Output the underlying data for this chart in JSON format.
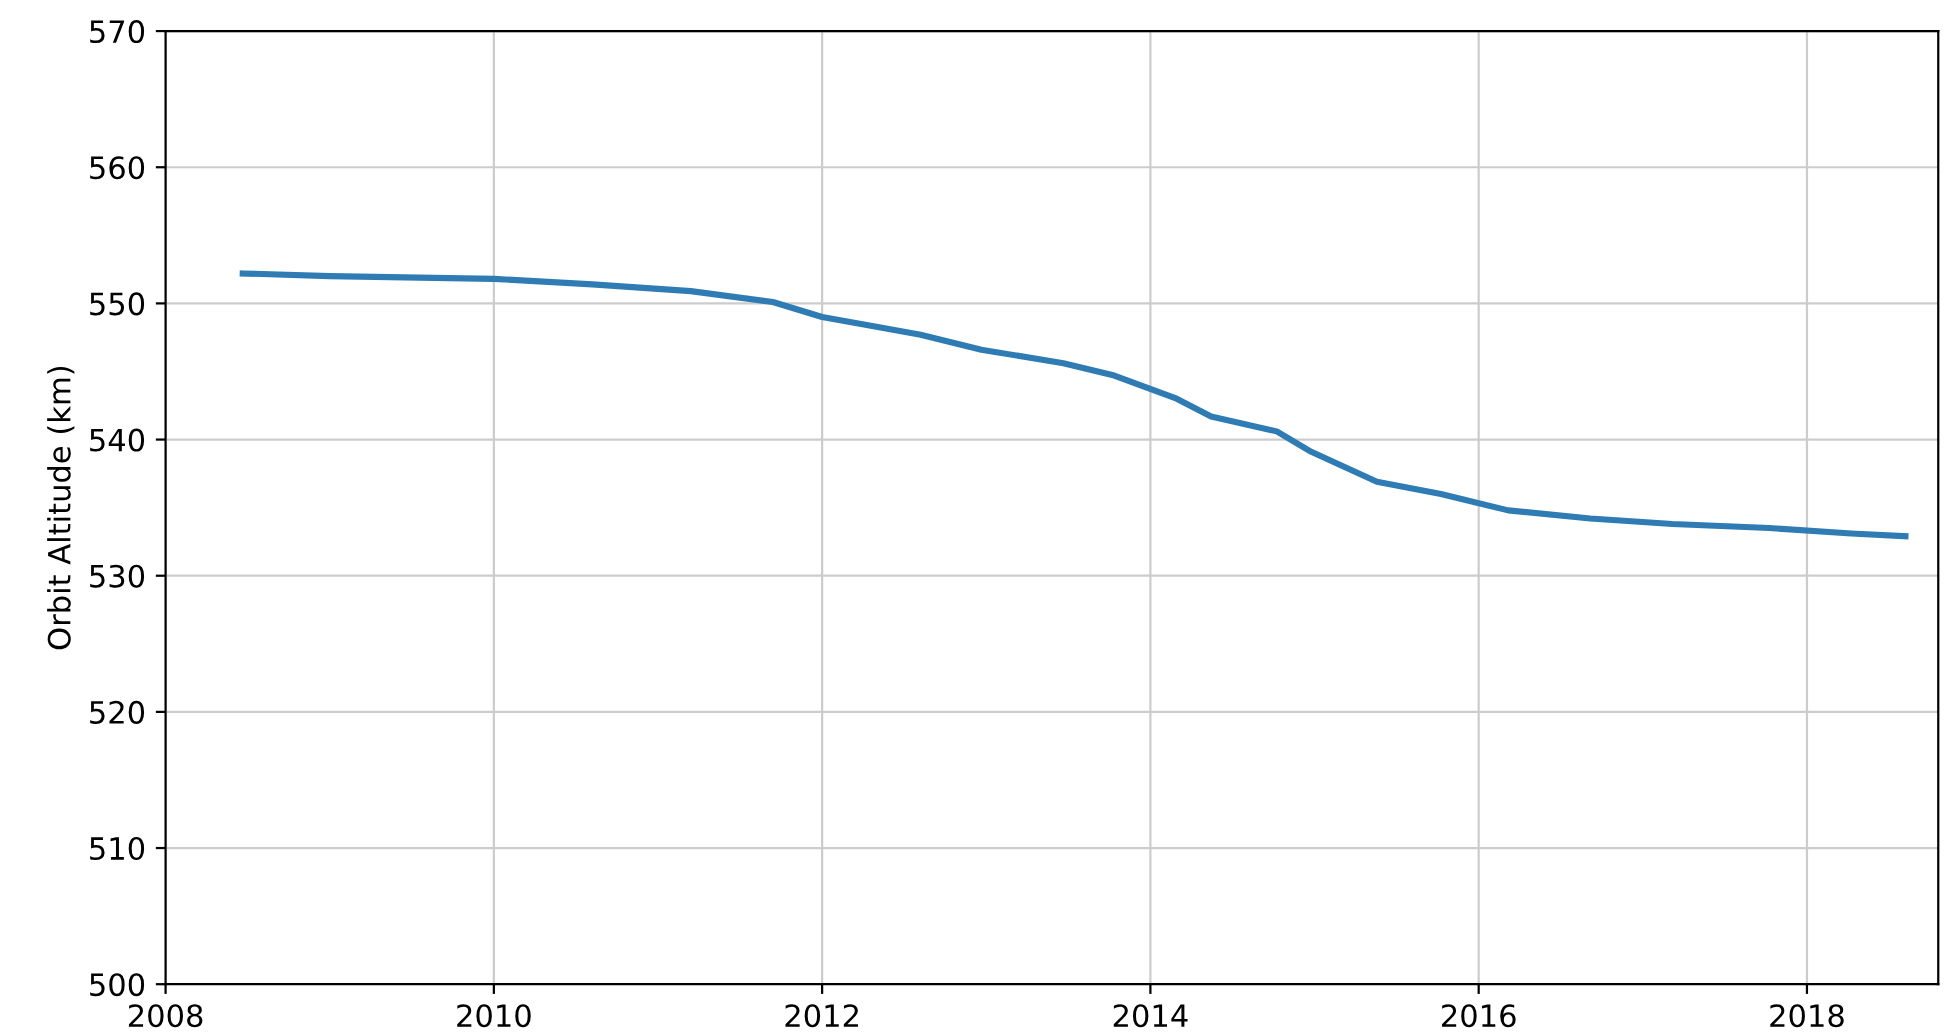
{
  "chart_data": {
    "type": "line",
    "ylabel": "Orbit Altitude (km)",
    "x": [
      2008.47,
      2009.0,
      2010.0,
      2010.6,
      2011.2,
      2011.7,
      2012.0,
      2012.28,
      2012.6,
      2012.97,
      2013.47,
      2013.78,
      2014.16,
      2014.37,
      2014.77,
      2014.98,
      2015.38,
      2015.77,
      2016.18,
      2016.68,
      2017.18,
      2017.77,
      2018.27,
      2018.6
    ],
    "series": [
      {
        "color": "#2f7bb4",
        "values": [
          552.2,
          552.0,
          551.8,
          551.4,
          550.9,
          550.1,
          549.0,
          548.4,
          547.7,
          546.6,
          545.6,
          544.7,
          543.0,
          541.7,
          540.6,
          539.1,
          536.9,
          536.0,
          534.8,
          534.2,
          533.8,
          533.5,
          533.1,
          532.9
        ]
      }
    ],
    "xlim": [
      2008,
      2018.8
    ],
    "xticks": [
      2008,
      2010,
      2012,
      2014,
      2016,
      2018
    ],
    "ylim": [
      500,
      570
    ],
    "yticks": [
      500,
      510,
      520,
      530,
      540,
      550,
      560,
      570
    ],
    "grid": true,
    "marker": "none",
    "line_style": "solid"
  }
}
